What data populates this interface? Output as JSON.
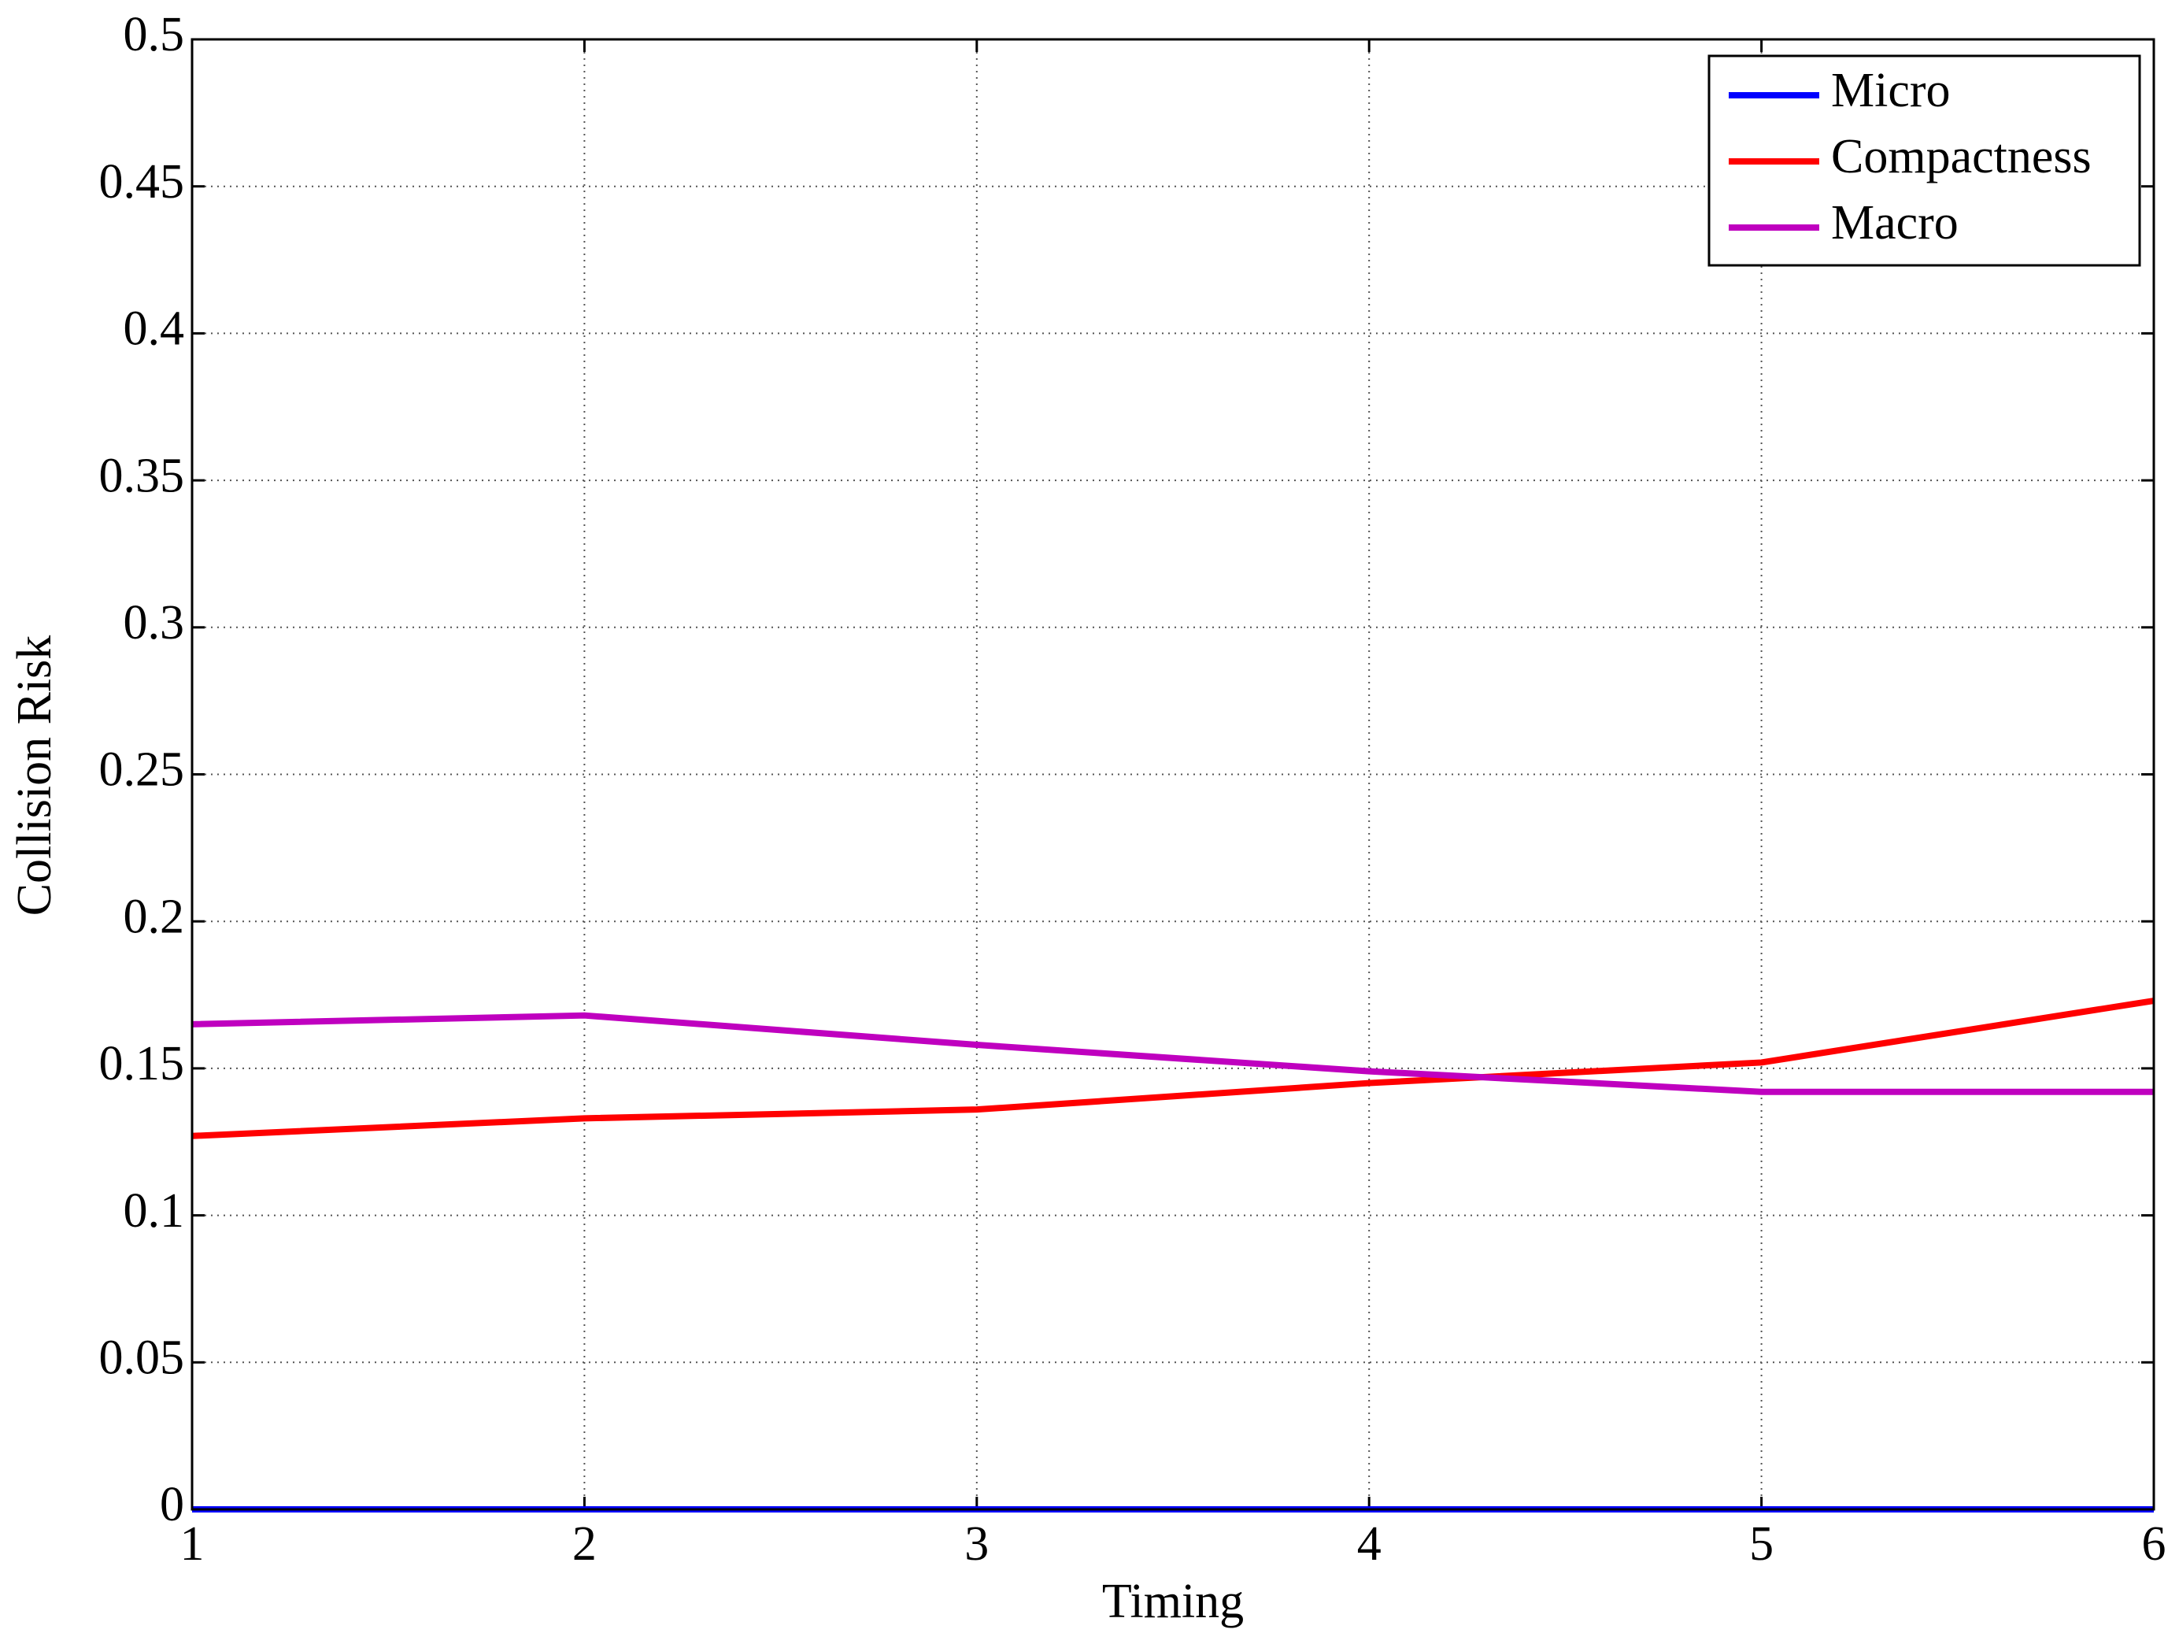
{
  "chart_data": {
    "type": "line",
    "xlabel": "Timing",
    "ylabel": "Collision Risk",
    "x": [
      1,
      2,
      3,
      4,
      5,
      6
    ],
    "series": [
      {
        "name": "Micro",
        "color": "#0000ff",
        "values": [
          0,
          0,
          0,
          0,
          0,
          0
        ]
      },
      {
        "name": "Compactness",
        "color": "#ff0000",
        "values": [
          0.127,
          0.133,
          0.136,
          0.145,
          0.152,
          0.173
        ]
      },
      {
        "name": "Macro",
        "color": "#bf00bf",
        "values": [
          0.165,
          0.168,
          0.158,
          0.149,
          0.142,
          0.142
        ]
      }
    ],
    "xlim": [
      1,
      6
    ],
    "xticks": [
      1,
      2,
      3,
      4,
      5,
      6
    ],
    "ylim": [
      0,
      0.5
    ],
    "yticks": [
      0,
      0.05,
      0.1,
      0.15,
      0.2,
      0.25,
      0.3,
      0.35,
      0.4,
      0.45,
      0.5
    ],
    "grid": true,
    "legend": "upper right"
  }
}
